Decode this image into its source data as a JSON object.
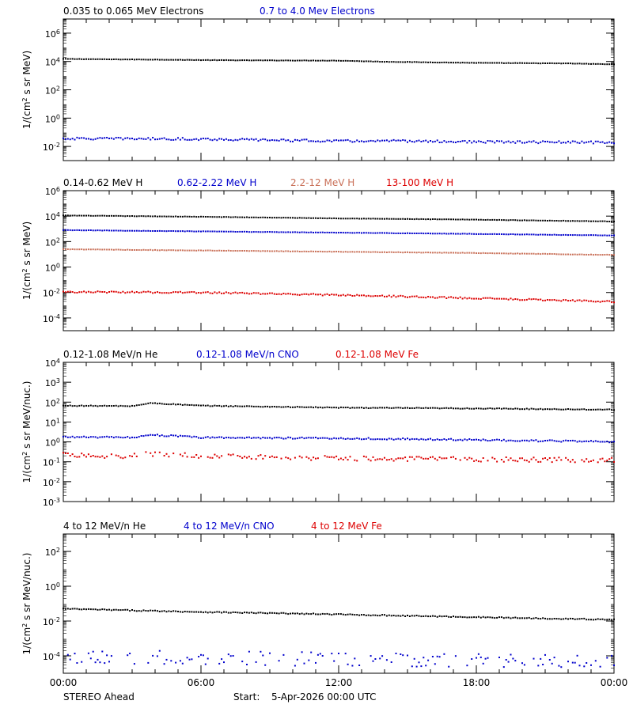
{
  "footer": {
    "mission": "STEREO Ahead",
    "start_label": "Start:",
    "start_value": "5-Apr-2026 00:00 UTC"
  },
  "x_axis": {
    "ticks": [
      "00:00",
      "06:00",
      "12:00",
      "18:00",
      "00:00"
    ],
    "range_hours": [
      0,
      24
    ]
  },
  "chart_data": [
    {
      "type": "scatter",
      "yscale": "log",
      "ylabel_text": "1/(cm",
      "ylabel_sup": "2",
      "ylabel_rest": " s sr MeV)",
      "ylim_exp": [
        -3,
        7
      ],
      "yticks": [
        {
          "base": "10",
          "exp": "6",
          "value_exp": 6
        },
        {
          "base": "10",
          "exp": "4",
          "value_exp": 4
        },
        {
          "base": "10",
          "exp": "2",
          "value_exp": 2
        },
        {
          "base": "10",
          "exp": "0",
          "value_exp": 0
        },
        {
          "base": "10",
          "exp": "-2",
          "value_exp": -2
        }
      ],
      "series": [
        {
          "name": "0.035 to 0.065 MeV Electrons",
          "color": "#000000",
          "noise": 0.012,
          "density": 1.0,
          "points": [
            [
              0,
              4.18
            ],
            [
              2,
              4.15
            ],
            [
              4,
              4.13
            ],
            [
              6,
              4.1
            ],
            [
              8,
              4.08
            ],
            [
              10,
              4.07
            ],
            [
              12,
              4.06
            ],
            [
              14,
              3.98
            ],
            [
              16,
              3.94
            ],
            [
              18,
              3.9
            ],
            [
              20,
              3.88
            ],
            [
              22,
              3.86
            ],
            [
              24,
              3.8
            ]
          ]
        },
        {
          "name": "0.7 to 4.0 Mev Electrons",
          "color": "#0000cc",
          "noise": 0.08,
          "density": 1.0,
          "points": [
            [
              0,
              -1.45
            ],
            [
              3,
              -1.45
            ],
            [
              6,
              -1.48
            ],
            [
              9,
              -1.55
            ],
            [
              12,
              -1.62
            ],
            [
              15,
              -1.62
            ],
            [
              18,
              -1.68
            ],
            [
              21,
              -1.7
            ],
            [
              24,
              -1.72
            ]
          ]
        }
      ]
    },
    {
      "type": "scatter",
      "yscale": "log",
      "ylabel_text": "1/(cm",
      "ylabel_sup": "2",
      "ylabel_rest": " s sr MeV)",
      "ylim_exp": [
        -5,
        6
      ],
      "yticks": [
        {
          "base": "10",
          "exp": "6",
          "value_exp": 6
        },
        {
          "base": "10",
          "exp": "4",
          "value_exp": 4
        },
        {
          "base": "10",
          "exp": "2",
          "value_exp": 2
        },
        {
          "base": "10",
          "exp": "0",
          "value_exp": 0
        },
        {
          "base": "10",
          "exp": "-2",
          "value_exp": -2
        },
        {
          "base": "10",
          "exp": "-4",
          "value_exp": -4
        }
      ],
      "series": [
        {
          "name": "0.14-0.62 MeV H",
          "color": "#000000",
          "noise": 0.012,
          "density": 1.0,
          "points": [
            [
              0,
              4.05
            ],
            [
              6,
              3.95
            ],
            [
              12,
              3.82
            ],
            [
              18,
              3.72
            ],
            [
              24,
              3.58
            ]
          ]
        },
        {
          "name": "0.62-2.22 MeV H",
          "color": "#0000cc",
          "noise": 0.012,
          "density": 1.0,
          "points": [
            [
              0,
              2.9
            ],
            [
              6,
              2.8
            ],
            [
              12,
              2.7
            ],
            [
              18,
              2.6
            ],
            [
              24,
              2.48
            ]
          ]
        },
        {
          "name": "2.2-12 MeV H",
          "color": "#c97058",
          "noise": 0.015,
          "density": 1.0,
          "points": [
            [
              0,
              1.4
            ],
            [
              6,
              1.3
            ],
            [
              12,
              1.2
            ],
            [
              18,
              1.1
            ],
            [
              24,
              0.95
            ]
          ]
        },
        {
          "name": "13-100 MeV H",
          "color": "#dd0000",
          "noise": 0.06,
          "density": 1.0,
          "points": [
            [
              0,
              -1.95
            ],
            [
              6,
              -2.0
            ],
            [
              12,
              -2.2
            ],
            [
              18,
              -2.45
            ],
            [
              24,
              -2.72
            ]
          ]
        }
      ]
    },
    {
      "type": "scatter",
      "yscale": "log",
      "ylabel_text": "1/(cm",
      "ylabel_sup": "2",
      "ylabel_rest": " s sr MeV/nuc.)",
      "ylim_exp": [
        -3,
        4
      ],
      "yticks": [
        {
          "base": "10",
          "exp": "4",
          "value_exp": 4
        },
        {
          "base": "10",
          "exp": "3",
          "value_exp": 3
        },
        {
          "base": "10",
          "exp": "2",
          "value_exp": 2
        },
        {
          "base": "10",
          "exp": "1",
          "value_exp": 1
        },
        {
          "base": "10",
          "exp": "0",
          "value_exp": 0
        },
        {
          "base": "10",
          "exp": "-1",
          "value_exp": -1
        },
        {
          "base": "10",
          "exp": "-2",
          "value_exp": -2
        },
        {
          "base": "10",
          "exp": "-3",
          "value_exp": -3
        }
      ],
      "series": [
        {
          "name": "0.12-1.08 MeV/n He",
          "color": "#000000",
          "noise": 0.02,
          "density": 1.0,
          "points": [
            [
              0,
              1.82
            ],
            [
              3,
              1.8
            ],
            [
              3.8,
              1.95
            ],
            [
              6,
              1.82
            ],
            [
              12,
              1.72
            ],
            [
              18,
              1.68
            ],
            [
              24,
              1.62
            ]
          ]
        },
        {
          "name": "0.12-1.08 MeV/n CNO",
          "color": "#0000cc",
          "noise": 0.04,
          "density": 1.0,
          "points": [
            [
              0,
              0.25
            ],
            [
              3,
              0.22
            ],
            [
              3.8,
              0.36
            ],
            [
              6,
              0.22
            ],
            [
              12,
              0.18
            ],
            [
              18,
              0.1
            ],
            [
              24,
              0.0
            ]
          ]
        },
        {
          "name": "0.12-1.08 MeV Fe",
          "color": "#dd0000",
          "noise": 0.12,
          "density": 0.85,
          "points": [
            [
              0,
              -0.65
            ],
            [
              3,
              -0.72
            ],
            [
              3.8,
              -0.6
            ],
            [
              6,
              -0.72
            ],
            [
              12,
              -0.82
            ],
            [
              18,
              -0.88
            ],
            [
              24,
              -0.92
            ]
          ]
        }
      ]
    },
    {
      "type": "scatter",
      "yscale": "log",
      "ylabel_text": "1/(cm",
      "ylabel_sup": "2",
      "ylabel_rest": " s sr MeV/nuc.)",
      "ylim_exp": [
        -5,
        3
      ],
      "yticks": [
        {
          "base": "10",
          "exp": "2",
          "value_exp": 2
        },
        {
          "base": "10",
          "exp": "0",
          "value_exp": 0
        },
        {
          "base": "10",
          "exp": "-2",
          "value_exp": -2
        },
        {
          "base": "10",
          "exp": "-4",
          "value_exp": -4
        }
      ],
      "series": [
        {
          "name": "4 to 12 MeV/n He",
          "color": "#000000",
          "noise": 0.03,
          "density": 1.0,
          "points": [
            [
              0,
              -1.3
            ],
            [
              6,
              -1.48
            ],
            [
              12,
              -1.62
            ],
            [
              18,
              -1.78
            ],
            [
              24,
              -1.92
            ]
          ]
        },
        {
          "name": "4 to 12 MeV/n CNO",
          "color": "#0000cc",
          "noise": 0.4,
          "density": 0.6,
          "points": [
            [
              0,
              -4.05
            ],
            [
              6,
              -4.1
            ],
            [
              12,
              -4.2
            ],
            [
              18,
              -4.28
            ],
            [
              24,
              -4.35
            ]
          ]
        },
        {
          "name": "4 to 12 MeV Fe",
          "color": "#dd0000",
          "noise": 0,
          "density": 0,
          "points": []
        }
      ]
    }
  ]
}
